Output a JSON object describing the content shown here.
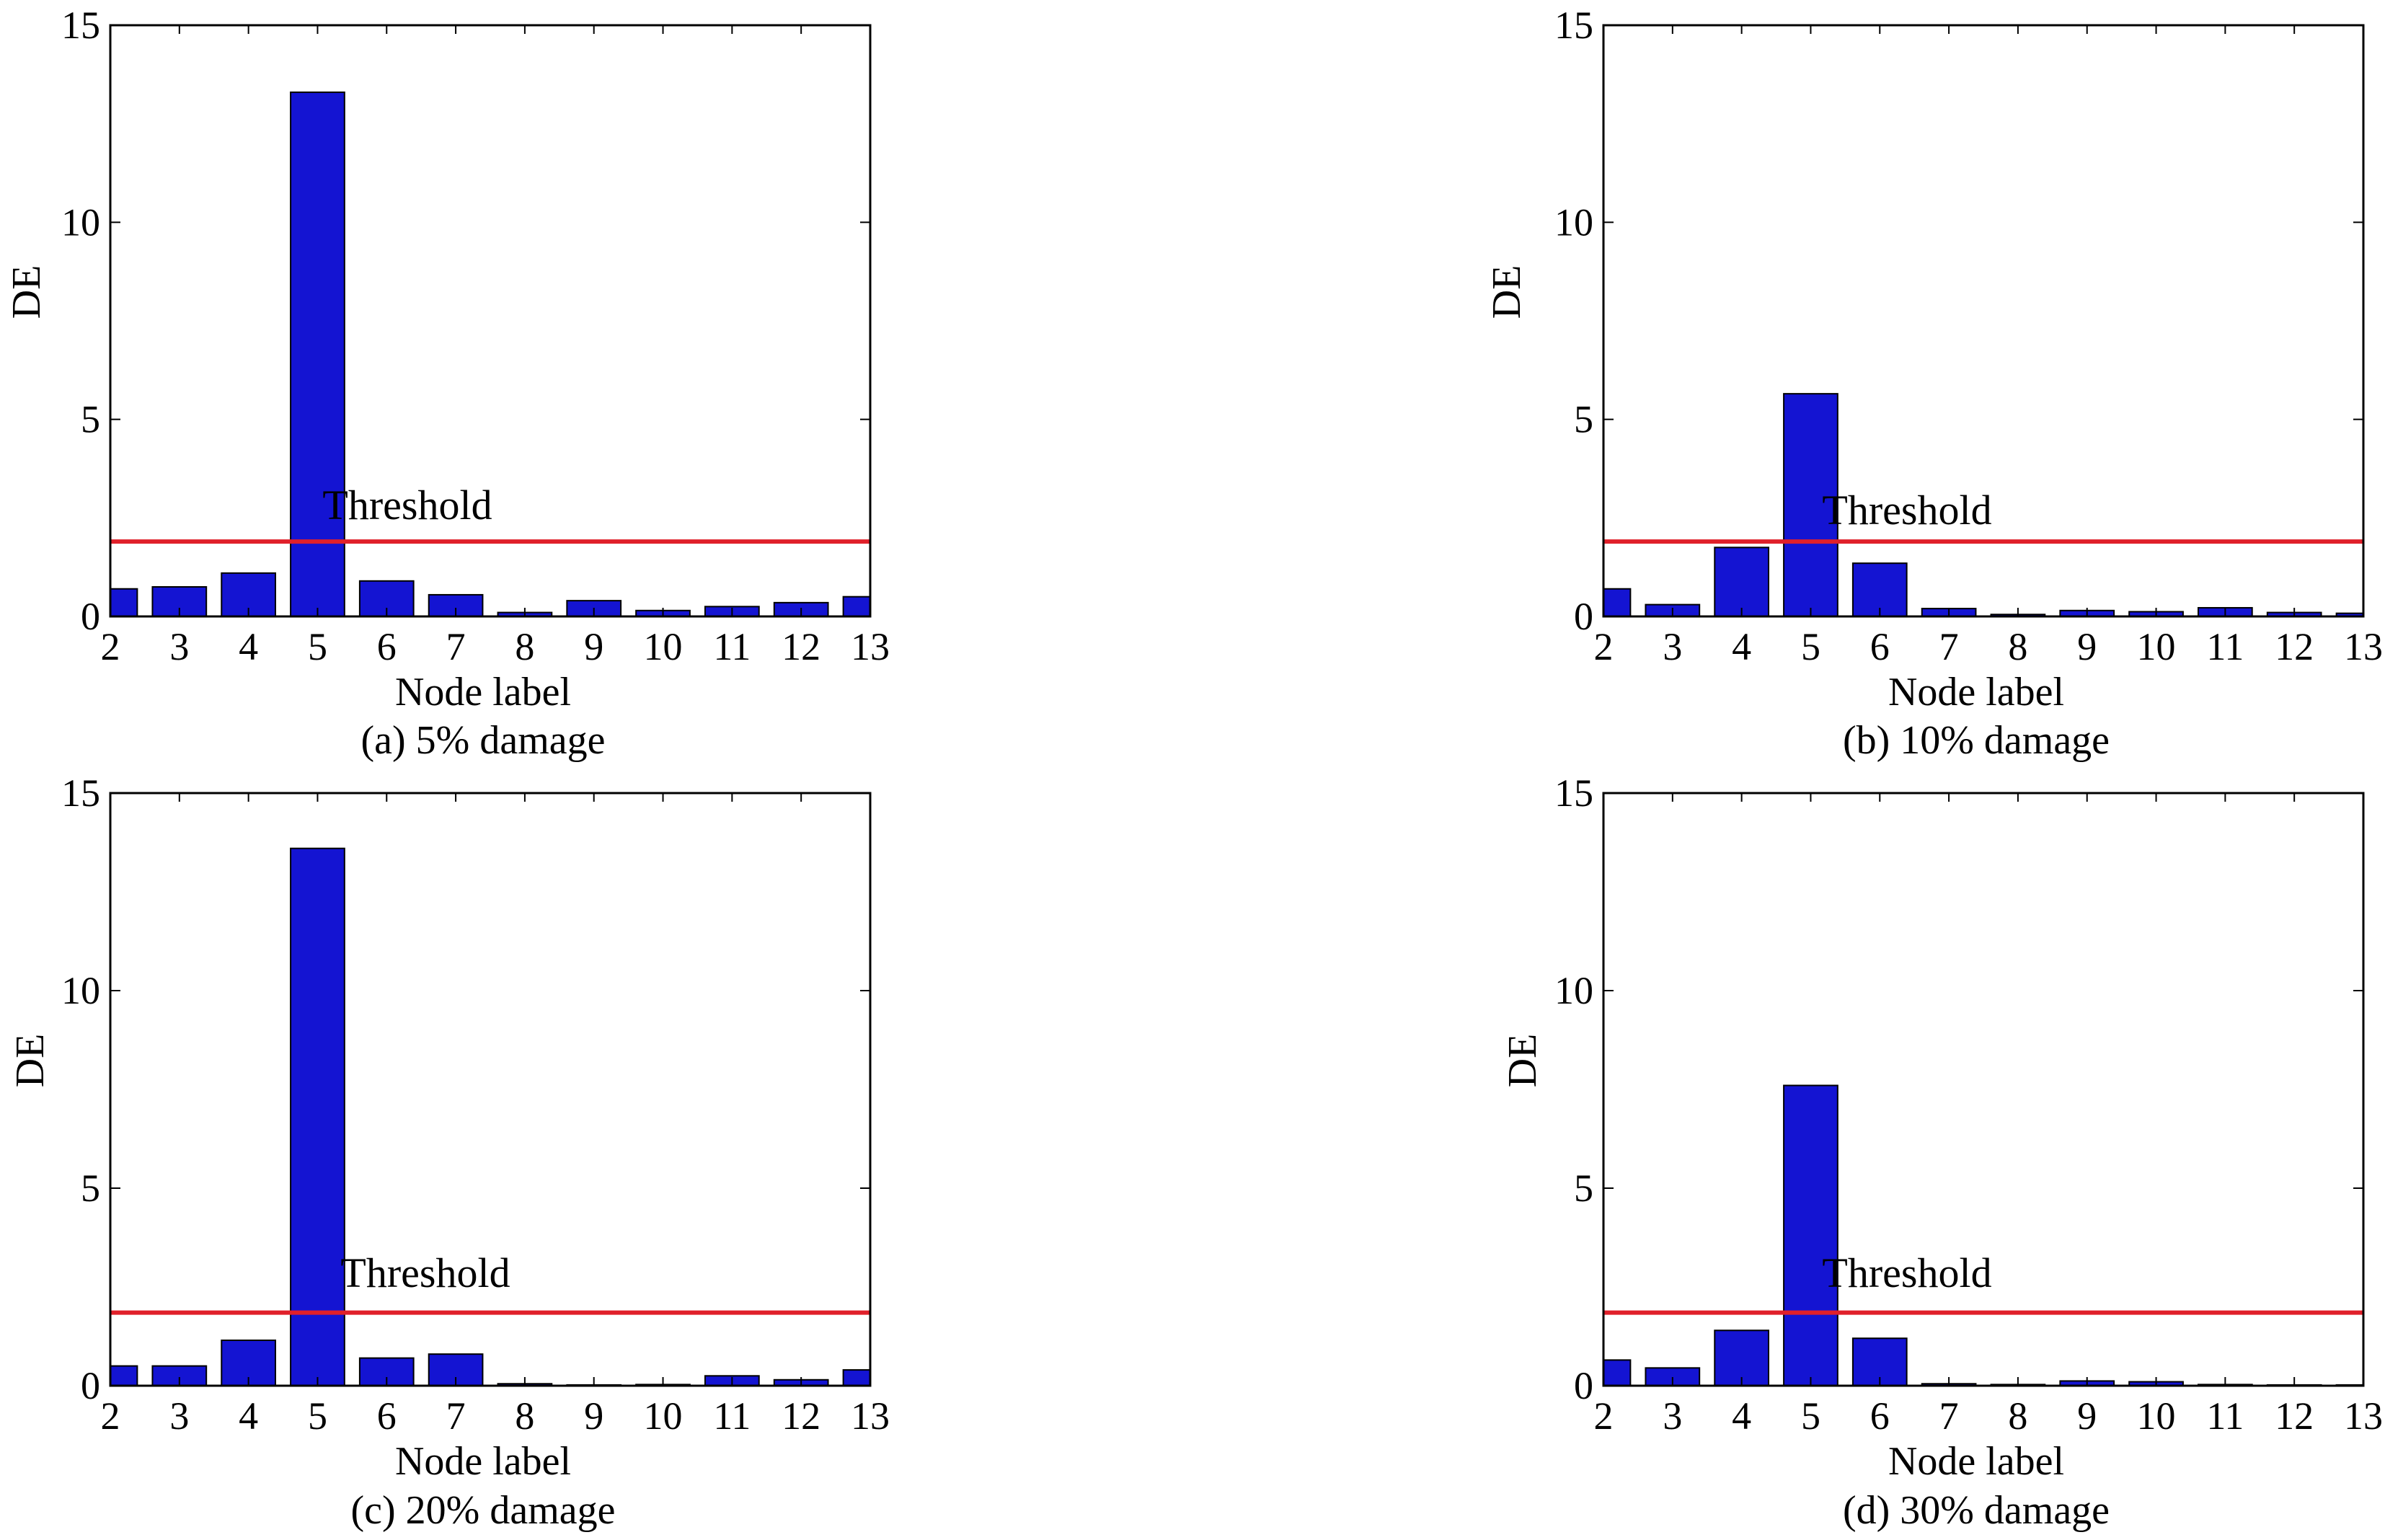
{
  "figure": {
    "ylabel": "DE",
    "xlabel": "Node label",
    "colors": {
      "bar": "#1414d2",
      "bar_edge": "#000000",
      "threshold": "#e0202a",
      "axis": "#000000"
    }
  },
  "chart_data": [
    {
      "type": "bar",
      "caption": "(a) 5% damage",
      "title": "",
      "xlabel": "Node label",
      "ylabel": "DE",
      "ylim": [
        0,
        15
      ],
      "yticks": [
        "0",
        "5",
        "10",
        "15"
      ],
      "categories": [
        "2",
        "3",
        "4",
        "5",
        "6",
        "7",
        "8",
        "9",
        "10",
        "11",
        "12",
        "13"
      ],
      "values": [
        0.7,
        0.75,
        1.1,
        13.3,
        0.9,
        0.55,
        0.1,
        0.4,
        0.15,
        0.25,
        0.35,
        0.5
      ],
      "threshold": {
        "label": "Threshold",
        "value": 1.9
      }
    },
    {
      "type": "bar",
      "caption": "(b) 10% damage",
      "title": "",
      "xlabel": "Node label",
      "ylabel": "DE",
      "ylim": [
        0,
        15
      ],
      "yticks": [
        "0",
        "5",
        "10",
        "15"
      ],
      "categories": [
        "2",
        "3",
        "4",
        "5",
        "6",
        "7",
        "8",
        "9",
        "10",
        "11",
        "12",
        "13"
      ],
      "values": [
        0.7,
        0.3,
        1.75,
        5.65,
        1.35,
        0.2,
        0.05,
        0.15,
        0.12,
        0.22,
        0.1,
        0.08
      ],
      "threshold": {
        "label": "Threshold",
        "value": 1.9
      }
    },
    {
      "type": "bar",
      "caption": "(c) 20% damage",
      "title": "",
      "xlabel": "Node label",
      "ylabel": "DE",
      "ylim": [
        0,
        15
      ],
      "yticks": [
        "0",
        "5",
        "10",
        "15"
      ],
      "categories": [
        "2",
        "3",
        "4",
        "5",
        "6",
        "7",
        "8",
        "9",
        "10",
        "11",
        "12",
        "13"
      ],
      "values": [
        0.5,
        0.5,
        1.15,
        13.6,
        0.7,
        0.8,
        0.05,
        0.02,
        0.03,
        0.25,
        0.15,
        0.4
      ],
      "threshold": {
        "label": "Threshold",
        "value": 1.85
      }
    },
    {
      "type": "bar",
      "caption": "(d) 30% damage",
      "title": "",
      "xlabel": "Node label",
      "ylabel": "DE",
      "ylim": [
        0,
        15
      ],
      "yticks": [
        "0",
        "5",
        "10",
        "15"
      ],
      "categories": [
        "2",
        "3",
        "4",
        "5",
        "6",
        "7",
        "8",
        "9",
        "10",
        "11",
        "12",
        "13"
      ],
      "values": [
        0.65,
        0.45,
        1.4,
        7.6,
        1.2,
        0.05,
        0.03,
        0.12,
        0.1,
        0.03,
        0.02,
        0.02
      ],
      "threshold": {
        "label": "Threshold",
        "value": 1.85
      }
    }
  ]
}
